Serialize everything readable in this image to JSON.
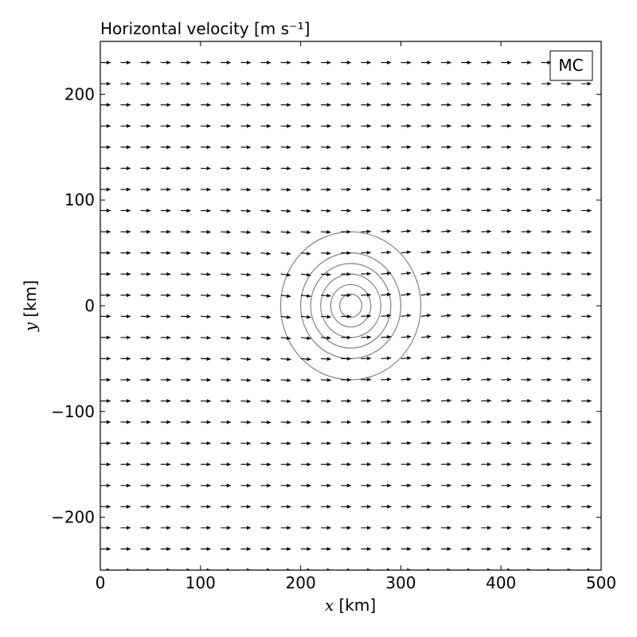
{
  "chart_data": {
    "type": "quiver",
    "title": "Horizontal velocity [m s⁻¹]",
    "xlabel": "x [km]",
    "ylabel": "y [km]",
    "xlabel_var": "x",
    "xlabel_unit": " [km]",
    "ylabel_var": "y",
    "ylabel_unit": " [km]",
    "xlim": [
      0,
      500
    ],
    "ylim": [
      -250,
      250
    ],
    "xticks": [
      0,
      100,
      200,
      300,
      400,
      500
    ],
    "yticks": [
      -200,
      -100,
      0,
      100,
      200
    ],
    "xtick_labels": [
      "0",
      "100",
      "200",
      "300",
      "400",
      "500"
    ],
    "ytick_labels": [
      "−200",
      "−100",
      "0",
      "100",
      "200"
    ],
    "legend": {
      "label": "MC",
      "placement": "top-right"
    },
    "quiver": {
      "x_start": 5,
      "x_step": 20,
      "x_count": 25,
      "y_start": -250,
      "y_step": 20,
      "y_count": 25,
      "dominant_direction": "+x",
      "vortex_center": [
        250,
        0
      ]
    },
    "contours": {
      "center": [
        250,
        0
      ],
      "radii_km": [
        11,
        20,
        30,
        40,
        50,
        70
      ],
      "color": "#808080"
    },
    "colors": {
      "arrow": "#000000",
      "contour": "#808080",
      "axes": "#000000",
      "background": "#ffffff"
    }
  }
}
